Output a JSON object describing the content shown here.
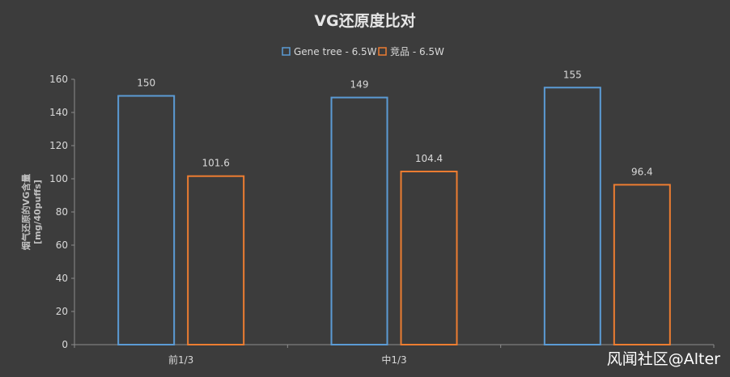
{
  "chart_data": {
    "type": "bar",
    "title": "VG还原度比对",
    "ylabel_line1": "烟气还原的VG含量",
    "ylabel_line2": "[mg/40puffs]",
    "xlabel": "",
    "ylim": [
      0,
      160
    ],
    "yticks": [
      "0",
      "20",
      "40",
      "60",
      "80",
      "100",
      "120",
      "140",
      "160"
    ],
    "categories": [
      "前1/3",
      "中1/3",
      ""
    ],
    "series": [
      {
        "name": "Gene tree - 6.5W",
        "color": "#5b9bd5",
        "values": [
          150,
          149,
          155
        ],
        "labels": [
          "150",
          "149",
          "155"
        ]
      },
      {
        "name": "竞品 - 6.5W",
        "color": "#ed7d31",
        "values": [
          101.6,
          104.4,
          96.4
        ],
        "labels": [
          "101.6",
          "104.4",
          "96.4"
        ]
      }
    ],
    "legend_position": "top-center",
    "grid": false
  },
  "watermark": "风闻社区@Alter"
}
